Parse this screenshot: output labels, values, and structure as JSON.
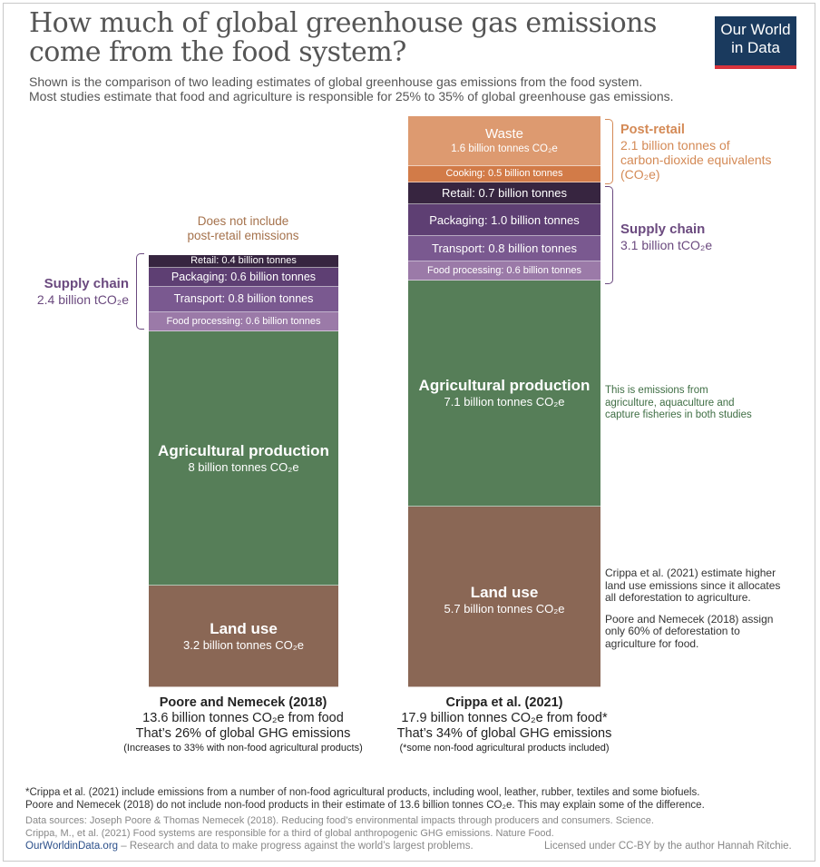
{
  "title": "How much of global greenhouse gas emissions come from the food system?",
  "subtitle_line1": "Shown is the comparison of two leading estimates of global greenhouse gas emissions from the food system.",
  "subtitle_line2": "Most studies estimate that food and agriculture is responsible for 25% to 35% of global greenhouse gas emissions.",
  "logo": {
    "line1": "Our World",
    "line2": "in Data"
  },
  "colors": {
    "land_use": "#8a6755",
    "agricultural": "#567e58",
    "food_processing": "#9b7aa8",
    "transport": "#7a5990",
    "packaging": "#5e3f73",
    "retail": "#372540",
    "cooking": "#d27b48",
    "waste": "#dd9a70",
    "supply_chain_label": "#6b4a7f",
    "post_retail_label": "#d48a56",
    "agri_note": "#3f6e44"
  },
  "chart_data": {
    "type": "bar",
    "stacked": true,
    "unit": "billion tonnes CO2e",
    "ylim": [
      0,
      17.9
    ],
    "series_order": [
      "Land use",
      "Agricultural production",
      "Food processing",
      "Transport",
      "Packaging",
      "Retail",
      "Cooking",
      "Waste"
    ],
    "bars": [
      {
        "name": "Poore and Nemecek (2018)",
        "total": 13.6,
        "segments": [
          {
            "key": "land_use",
            "label": "Land use",
            "value": 3.2,
            "text": "3.2 billion tonnes CO₂e"
          },
          {
            "key": "agricultural",
            "label": "Agricultural production",
            "value": 8,
            "text": "8 billion tonnes CO₂e"
          },
          {
            "key": "food_processing",
            "label": "Food processing",
            "value": 0.6,
            "text": "Food processing: 0.6 billion tonnes"
          },
          {
            "key": "transport",
            "label": "Transport",
            "value": 0.8,
            "text": "Transport: 0.8 billion tonnes"
          },
          {
            "key": "packaging",
            "label": "Packaging",
            "value": 0.6,
            "text": "Packaging: 0.6 billion tonnes"
          },
          {
            "key": "retail",
            "label": "Retail",
            "value": 0.4,
            "text": "Retail: 0.4 billion tonnes"
          }
        ]
      },
      {
        "name": "Crippa et al. (2021)",
        "total": 17.9,
        "segments": [
          {
            "key": "land_use",
            "label": "Land use",
            "value": 5.7,
            "text": "5.7 billion tonnes CO₂e"
          },
          {
            "key": "agricultural",
            "label": "Agricultural production",
            "value": 7.1,
            "text": "7.1 billion tonnes CO₂e"
          },
          {
            "key": "food_processing",
            "label": "Food processing",
            "value": 0.6,
            "text": "Food processing: 0.6 billion tonnes"
          },
          {
            "key": "transport",
            "label": "Transport",
            "value": 0.8,
            "text": "Transport: 0.8 billion tonnes"
          },
          {
            "key": "packaging",
            "label": "Packaging",
            "value": 1.0,
            "text": "Packaging: 1.0 billion tonnes"
          },
          {
            "key": "retail",
            "label": "Retail",
            "value": 0.7,
            "text": "Retail: 0.7 billion tonnes"
          },
          {
            "key": "cooking",
            "label": "Cooking",
            "value": 0.5,
            "text": "Cooking: 0.5 billion tonnes"
          },
          {
            "key": "waste",
            "label": "Waste",
            "value": 1.6,
            "text": "1.6 billion tonnes CO₂e"
          }
        ]
      }
    ],
    "annotations": {
      "left_no_post_retail": [
        "Does not include",
        "post-retail emissions"
      ],
      "left_supply_chain": {
        "title": "Supply chain",
        "value": "2.4 billion tCO₂e"
      },
      "right_post_retail": {
        "title": "Post-retail",
        "lines": [
          "2.1 billion tonnes of",
          "carbon-dioxide equivalents",
          "(CO₂e)"
        ]
      },
      "right_supply_chain": {
        "title": "Supply chain",
        "value": "3.1 billion tCO₂e"
      },
      "agri_note": [
        "This is emissions from",
        "agriculture, aquaculture and",
        "capture fisheries in both studies"
      ],
      "land_use_note_1": [
        "Crippa et al. (2021) estimate higher",
        "land use emissions since it allocates",
        "all deforestation to agriculture."
      ],
      "land_use_note_2": [
        "Poore and Nemecek (2018) assign",
        "only 60% of deforestation to",
        "agriculture for food."
      ]
    },
    "bar_captions": [
      {
        "name": "Poore and Nemecek (2018)",
        "line1": "13.6 billion tonnes CO₂e from food",
        "line2": "That’s 26% of global GHG emissions",
        "line3": "(Increases to 33% with non-food agricultural products)"
      },
      {
        "name": "Crippa et al. (2021)",
        "line1": "17.9 billion tonnes CO₂e from food*",
        "line2": "That’s 34% of global GHG emissions",
        "line3": "(*some non-food agricultural products included)"
      }
    ]
  },
  "footer": {
    "note1": "*Crippa et al. (2021) include emissions from a number of non-food agricultural products, including wool, leather, rubber, textiles and some biofuels.",
    "note2": "Poore and Nemecek (2018) do not include non-food products in their estimate of 13.6 billion tonnes CO₂e. This may explain some of the difference.",
    "sources1_prefix": "Data sources: ",
    "sources1": "Joseph Poore & Thomas Nemecek (2018). Reducing food’s environmental impacts through producers and consumers. Science.",
    "sources2": "Crippa, M., et al. (2021) Food systems are responsible for a third of global anthropogenic GHG emissions. Nature Food.",
    "site": "OurWorldinData.org",
    "tagline": " – Research and data to make progress against the world’s largest problems.",
    "license": "Licensed under CC-BY by the author Hannah Ritchie."
  }
}
